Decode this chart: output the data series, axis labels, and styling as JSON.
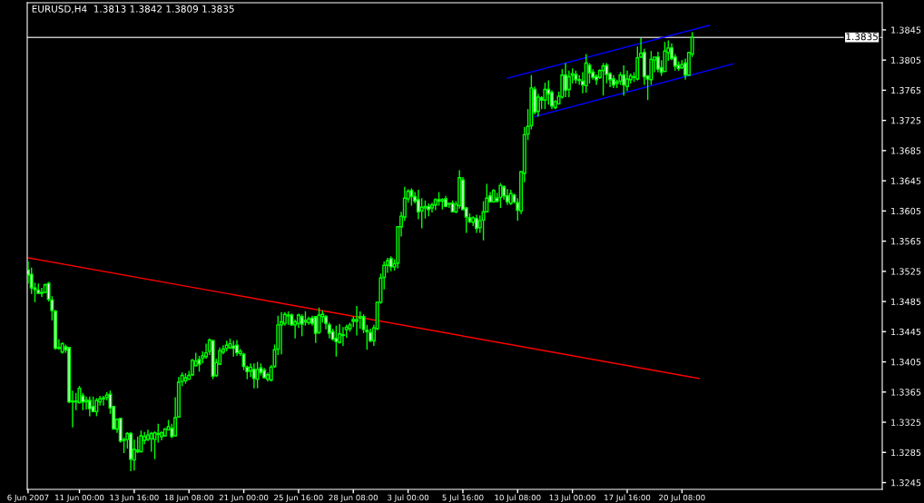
{
  "chart_data": {
    "type": "candlestick",
    "title": "EURUSD,H4  1.3813 1.3842 1.3809 1.3835",
    "categories": [
      "6 Jun 2007",
      null,
      null,
      null,
      null,
      null,
      null,
      null,
      null,
      null,
      null,
      null,
      null,
      null,
      null,
      "11 Jun 00:00",
      null,
      null,
      null,
      null,
      null,
      null,
      null,
      null,
      null,
      null,
      null,
      null,
      null,
      null,
      null,
      "13 Jun 16:00",
      null,
      null,
      null,
      null,
      null,
      null,
      null,
      null,
      null,
      null,
      null,
      null,
      null,
      null,
      null,
      "18 Jun 08:00",
      null,
      null,
      null,
      null,
      null,
      null,
      null,
      null,
      null,
      null,
      null,
      null,
      null,
      null,
      null,
      "21 Jun 00:00",
      null,
      null,
      null,
      null,
      null,
      null,
      null,
      null,
      null,
      null,
      null,
      null,
      null,
      null,
      null,
      "25 Jun 16:00",
      null,
      null,
      null,
      null,
      null,
      null,
      null,
      null,
      null,
      null,
      null,
      null,
      null,
      null,
      null,
      "28 Jun 08:00",
      null,
      null,
      null,
      null,
      null,
      null,
      null,
      null,
      null,
      null,
      null,
      null,
      null,
      null,
      null,
      "3 Jul 00:00",
      null,
      null,
      null,
      null,
      null,
      null,
      null,
      null,
      null,
      null,
      null,
      null,
      null,
      null,
      null,
      "5 Jul 16:00",
      null,
      null,
      null,
      null,
      null,
      null,
      null,
      null,
      null,
      null,
      null,
      null,
      null,
      null,
      null,
      "10 Jul 08:00",
      null,
      null,
      null,
      null,
      null,
      null,
      null,
      null,
      null,
      null,
      null,
      null,
      null,
      null,
      null,
      "13 Jul 00:00",
      null,
      null,
      null,
      null,
      null,
      null,
      null,
      null,
      null,
      null,
      null,
      null,
      null,
      null,
      null,
      "17 Jul 16:00",
      null,
      null,
      null,
      null,
      null,
      null,
      null,
      null,
      null,
      null,
      null,
      null,
      null,
      null,
      null,
      "20 Jul 08:00",
      null,
      null,
      null,
      null,
      null,
      null,
      null,
      null,
      null,
      null,
      null,
      null,
      null,
      null,
      null,
      null,
      null,
      null,
      null,
      null,
      null,
      null,
      null,
      null,
      null,
      null,
      null,
      null,
      null,
      null,
      null,
      null,
      null,
      null,
      null,
      null,
      null,
      null,
      null,
      null,
      null,
      null,
      null,
      null,
      null,
      null,
      null,
      null,
      null,
      null,
      null,
      null,
      null,
      null,
      null,
      null,
      null,
      null
    ],
    "ohlc": [
      [
        1.3527,
        1.3538,
        1.3509,
        1.352
      ],
      [
        1.3521,
        1.353,
        1.3495,
        1.3503
      ],
      [
        1.3503,
        1.351,
        1.3484,
        1.3501
      ],
      [
        1.35,
        1.3509,
        1.3495,
        1.3496
      ],
      [
        1.3496,
        1.3503,
        1.3491,
        1.3497
      ],
      [
        1.3497,
        1.3509,
        1.3496,
        1.3507
      ],
      [
        1.3509,
        1.3511,
        1.3485,
        1.3488
      ],
      [
        1.3487,
        1.3492,
        1.346,
        1.3473
      ],
      [
        1.3472,
        1.3474,
        1.3421,
        1.3423
      ],
      [
        1.3423,
        1.3435,
        1.3421,
        1.3424
      ],
      [
        1.3418,
        1.3431,
        1.3416,
        1.3429
      ],
      [
        1.3425,
        1.3428,
        1.3417,
        1.3421
      ],
      [
        1.3424,
        1.3425,
        1.335,
        1.3352
      ],
      [
        1.3352,
        1.3367,
        1.3318,
        1.3353
      ],
      [
        1.3353,
        1.3364,
        1.3341,
        1.3352
      ],
      [
        1.3351,
        1.3373,
        1.335,
        1.337
      ],
      [
        1.336,
        1.3364,
        1.3341,
        1.3352
      ],
      [
        1.3352,
        1.3359,
        1.3342,
        1.3354
      ],
      [
        1.3354,
        1.3359,
        1.3333,
        1.3343
      ],
      [
        1.3346,
        1.3359,
        1.3339,
        1.3339
      ],
      [
        1.3339,
        1.3357,
        1.3333,
        1.3354
      ],
      [
        1.3352,
        1.336,
        1.3347,
        1.3356
      ],
      [
        1.3356,
        1.336,
        1.3347,
        1.3357
      ],
      [
        1.3358,
        1.3365,
        1.3354,
        1.3361
      ],
      [
        1.3362,
        1.3367,
        1.3336,
        1.3344
      ],
      [
        1.3346,
        1.3346,
        1.3316,
        1.3316
      ],
      [
        1.3316,
        1.3329,
        1.3311,
        1.3329
      ],
      [
        1.333,
        1.3331,
        1.3298,
        1.33
      ],
      [
        1.3301,
        1.3305,
        1.3284,
        1.3302
      ],
      [
        1.3302,
        1.3312,
        1.329,
        1.331
      ],
      [
        1.331,
        1.3312,
        1.326,
        1.3276
      ],
      [
        1.3275,
        1.3302,
        1.3261,
        1.3289
      ],
      [
        1.3286,
        1.3306,
        1.3284,
        1.3288
      ],
      [
        1.3286,
        1.3314,
        1.3285,
        1.3307
      ],
      [
        1.3301,
        1.3312,
        1.3296,
        1.3306
      ],
      [
        1.3302,
        1.3315,
        1.33,
        1.3308
      ],
      [
        1.3303,
        1.3312,
        1.3286,
        1.331
      ],
      [
        1.3302,
        1.3313,
        1.3276,
        1.3311
      ],
      [
        1.331,
        1.3323,
        1.3298,
        1.3309
      ],
      [
        1.3306,
        1.3313,
        1.3301,
        1.3311
      ],
      [
        1.3307,
        1.3317,
        1.3306,
        1.3316
      ],
      [
        1.3315,
        1.3328,
        1.3315,
        1.3319
      ],
      [
        1.3317,
        1.3323,
        1.3304,
        1.3306
      ],
      [
        1.3307,
        1.3358,
        1.3306,
        1.3331
      ],
      [
        1.3332,
        1.3385,
        1.3332,
        1.3378
      ],
      [
        1.3379,
        1.3391,
        1.3373,
        1.3387
      ],
      [
        1.338,
        1.339,
        1.3376,
        1.3384
      ],
      [
        1.3382,
        1.3393,
        1.3381,
        1.3387
      ],
      [
        1.3388,
        1.3409,
        1.3386,
        1.3407
      ],
      [
        1.34,
        1.3417,
        1.3399,
        1.3406
      ],
      [
        1.3408,
        1.3413,
        1.3392,
        1.3402
      ],
      [
        1.341,
        1.3419,
        1.3403,
        1.3413
      ],
      [
        1.3412,
        1.3429,
        1.3409,
        1.3417
      ],
      [
        1.3419,
        1.3436,
        1.3414,
        1.3434
      ],
      [
        1.3433,
        1.3434,
        1.3382,
        1.3386
      ],
      [
        1.3387,
        1.3409,
        1.3385,
        1.3404
      ],
      [
        1.3402,
        1.3424,
        1.3401,
        1.342
      ],
      [
        1.3418,
        1.3427,
        1.3415,
        1.3422
      ],
      [
        1.3423,
        1.3433,
        1.3419,
        1.3427
      ],
      [
        1.3424,
        1.3436,
        1.3422,
        1.3429
      ],
      [
        1.3426,
        1.3433,
        1.3412,
        1.3423
      ],
      [
        1.3427,
        1.3434,
        1.3413,
        1.3417
      ],
      [
        1.3416,
        1.3422,
        1.3413,
        1.3419
      ],
      [
        1.3415,
        1.3417,
        1.3394,
        1.3399
      ],
      [
        1.3398,
        1.34,
        1.3382,
        1.3392
      ],
      [
        1.3393,
        1.3403,
        1.3385,
        1.3398
      ],
      [
        1.3395,
        1.3403,
        1.337,
        1.3383
      ],
      [
        1.3382,
        1.3405,
        1.337,
        1.3395
      ],
      [
        1.3397,
        1.3403,
        1.3387,
        1.3391
      ],
      [
        1.3394,
        1.3397,
        1.3383,
        1.3384
      ],
      [
        1.3382,
        1.3391,
        1.3379,
        1.3388
      ],
      [
        1.3381,
        1.3401,
        1.3379,
        1.3398
      ],
      [
        1.3399,
        1.3428,
        1.3397,
        1.3421
      ],
      [
        1.3422,
        1.3466,
        1.3414,
        1.3454
      ],
      [
        1.3454,
        1.3471,
        1.3415,
        1.3458
      ],
      [
        1.3456,
        1.3471,
        1.3453,
        1.3468
      ],
      [
        1.3467,
        1.3472,
        1.3454,
        1.3466
      ],
      [
        1.3467,
        1.3469,
        1.3453,
        1.3454
      ],
      [
        1.3454,
        1.3461,
        1.3436,
        1.3458
      ],
      [
        1.3456,
        1.3469,
        1.345,
        1.3467
      ],
      [
        1.3465,
        1.3468,
        1.3439,
        1.3455
      ],
      [
        1.3458,
        1.3472,
        1.3453,
        1.346
      ],
      [
        1.3457,
        1.3465,
        1.3454,
        1.3462
      ],
      [
        1.3463,
        1.3466,
        1.3453,
        1.3456
      ],
      [
        1.3465,
        1.3465,
        1.343,
        1.3443
      ],
      [
        1.3444,
        1.3477,
        1.3442,
        1.3467
      ],
      [
        1.3465,
        1.3473,
        1.3457,
        1.3468
      ],
      [
        1.3465,
        1.3467,
        1.3448,
        1.3456
      ],
      [
        1.3454,
        1.3457,
        1.3436,
        1.3443
      ],
      [
        1.3445,
        1.3449,
        1.3433,
        1.3435
      ],
      [
        1.3436,
        1.3453,
        1.3412,
        1.3432
      ],
      [
        1.3431,
        1.3455,
        1.3429,
        1.3442
      ],
      [
        1.3441,
        1.3451,
        1.3426,
        1.344
      ],
      [
        1.3448,
        1.3454,
        1.3437,
        1.3451
      ],
      [
        1.3449,
        1.3457,
        1.3445,
        1.3454
      ],
      [
        1.3459,
        1.3465,
        1.3451,
        1.3461
      ],
      [
        1.3459,
        1.3479,
        1.344,
        1.3461
      ],
      [
        1.3463,
        1.3472,
        1.3449,
        1.3465
      ],
      [
        1.3465,
        1.3468,
        1.3443,
        1.3448
      ],
      [
        1.3447,
        1.3454,
        1.3421,
        1.3445
      ],
      [
        1.3444,
        1.3449,
        1.3431,
        1.3433
      ],
      [
        1.3433,
        1.3454,
        1.3426,
        1.345
      ],
      [
        1.3449,
        1.3485,
        1.3447,
        1.3484
      ],
      [
        1.3484,
        1.3522,
        1.3482,
        1.3516
      ],
      [
        1.3517,
        1.3538,
        1.3501,
        1.3533
      ],
      [
        1.3533,
        1.3543,
        1.3523,
        1.3539
      ],
      [
        1.3542,
        1.3545,
        1.3525,
        1.3531
      ],
      [
        1.3531,
        1.3541,
        1.3526,
        1.3535
      ],
      [
        1.3536,
        1.3585,
        1.3529,
        1.3584
      ],
      [
        1.3584,
        1.3604,
        1.3571,
        1.3598
      ],
      [
        1.3597,
        1.3637,
        1.3592,
        1.3622
      ],
      [
        1.3621,
        1.3634,
        1.3616,
        1.3631
      ],
      [
        1.3632,
        1.3635,
        1.3612,
        1.3624
      ],
      [
        1.3624,
        1.363,
        1.3615,
        1.3618
      ],
      [
        1.362,
        1.3633,
        1.3594,
        1.3604
      ],
      [
        1.3605,
        1.3622,
        1.3582,
        1.361
      ],
      [
        1.3609,
        1.3619,
        1.3595,
        1.3611
      ],
      [
        1.3611,
        1.3615,
        1.3598,
        1.3607
      ],
      [
        1.3609,
        1.3616,
        1.3603,
        1.3613
      ],
      [
        1.3613,
        1.3622,
        1.3606,
        1.362
      ],
      [
        1.362,
        1.363,
        1.3612,
        1.3618
      ],
      [
        1.3618,
        1.3622,
        1.3607,
        1.362
      ],
      [
        1.3621,
        1.3625,
        1.361,
        1.3611
      ],
      [
        1.3614,
        1.3616,
        1.3609,
        1.3615
      ],
      [
        1.3615,
        1.3619,
        1.3603,
        1.3604
      ],
      [
        1.3604,
        1.3618,
        1.3602,
        1.3614
      ],
      [
        1.3612,
        1.3659,
        1.3608,
        1.3649
      ],
      [
        1.3646,
        1.365,
        1.3606,
        1.3607
      ],
      [
        1.3609,
        1.361,
        1.3576,
        1.3597
      ],
      [
        1.3596,
        1.3602,
        1.3589,
        1.3591
      ],
      [
        1.359,
        1.3598,
        1.3585,
        1.3596
      ],
      [
        1.3595,
        1.36,
        1.3576,
        1.3582
      ],
      [
        1.3583,
        1.3599,
        1.3576,
        1.3592
      ],
      [
        1.3593,
        1.3618,
        1.3566,
        1.3604
      ],
      [
        1.3604,
        1.3641,
        1.3603,
        1.3622
      ],
      [
        1.3625,
        1.363,
        1.3616,
        1.3617
      ],
      [
        1.3617,
        1.3634,
        1.3616,
        1.3632
      ],
      [
        1.3622,
        1.3629,
        1.3616,
        1.3618
      ],
      [
        1.3623,
        1.3642,
        1.3609,
        1.3639
      ],
      [
        1.3637,
        1.3639,
        1.362,
        1.3625
      ],
      [
        1.3625,
        1.3634,
        1.3613,
        1.3617
      ],
      [
        1.3615,
        1.3633,
        1.3613,
        1.3628
      ],
      [
        1.3626,
        1.3628,
        1.3615,
        1.3617
      ],
      [
        1.3616,
        1.3622,
        1.3592,
        1.3606
      ],
      [
        1.3605,
        1.3658,
        1.3601,
        1.3657
      ],
      [
        1.3655,
        1.3716,
        1.3643,
        1.3706
      ],
      [
        1.3707,
        1.374,
        1.3699,
        1.3717
      ],
      [
        1.3718,
        1.3785,
        1.3713,
        1.3768
      ],
      [
        1.3766,
        1.377,
        1.3733,
        1.3736
      ],
      [
        1.3737,
        1.376,
        1.373,
        1.3756
      ],
      [
        1.3755,
        1.3757,
        1.374,
        1.3752
      ],
      [
        1.3752,
        1.3775,
        1.374,
        1.3766
      ],
      [
        1.3766,
        1.3778,
        1.3746,
        1.376
      ],
      [
        1.3762,
        1.3765,
        1.374,
        1.3744
      ],
      [
        1.3742,
        1.3752,
        1.374,
        1.375
      ],
      [
        1.3747,
        1.3763,
        1.3746,
        1.3757
      ],
      [
        1.3756,
        1.3793,
        1.3754,
        1.3785
      ],
      [
        1.3785,
        1.3801,
        1.3756,
        1.3765
      ],
      [
        1.3766,
        1.3791,
        1.3756,
        1.3783
      ],
      [
        1.3785,
        1.3794,
        1.3774,
        1.3787
      ],
      [
        1.3786,
        1.3791,
        1.3774,
        1.3779
      ],
      [
        1.3779,
        1.3785,
        1.3772,
        1.3778
      ],
      [
        1.3777,
        1.3789,
        1.3761,
        1.3772
      ],
      [
        1.3771,
        1.3813,
        1.3762,
        1.3801
      ],
      [
        1.3798,
        1.3801,
        1.3774,
        1.3788
      ],
      [
        1.3789,
        1.3793,
        1.3779,
        1.3782
      ],
      [
        1.3783,
        1.3786,
        1.3772,
        1.3779
      ],
      [
        1.3782,
        1.3793,
        1.378,
        1.3791
      ],
      [
        1.3791,
        1.3801,
        1.3758,
        1.3797
      ],
      [
        1.3798,
        1.3801,
        1.3774,
        1.3786
      ],
      [
        1.3787,
        1.3789,
        1.3769,
        1.3779
      ],
      [
        1.378,
        1.3785,
        1.3768,
        1.3772
      ],
      [
        1.3774,
        1.3779,
        1.3768,
        1.3776
      ],
      [
        1.3777,
        1.3789,
        1.3772,
        1.3785
      ],
      [
        1.3785,
        1.3798,
        1.3758,
        1.3772
      ],
      [
        1.377,
        1.3791,
        1.3764,
        1.378
      ],
      [
        1.3779,
        1.3787,
        1.3774,
        1.3784
      ],
      [
        1.3783,
        1.3789,
        1.3776,
        1.3782
      ],
      [
        1.378,
        1.3823,
        1.3778,
        1.3808
      ],
      [
        1.3809,
        1.3834,
        1.3808,
        1.3814
      ],
      [
        1.3815,
        1.382,
        1.3772,
        1.3783
      ],
      [
        1.3784,
        1.3785,
        1.3752,
        1.378
      ],
      [
        1.3779,
        1.3817,
        1.3772,
        1.3806
      ],
      [
        1.3805,
        1.3809,
        1.3789,
        1.3809
      ],
      [
        1.3809,
        1.3816,
        1.3789,
        1.3793
      ],
      [
        1.3795,
        1.3805,
        1.3784,
        1.3789
      ],
      [
        1.379,
        1.3829,
        1.3789,
        1.3817
      ],
      [
        1.3815,
        1.3831,
        1.3804,
        1.3821
      ],
      [
        1.3821,
        1.3827,
        1.3805,
        1.3807
      ],
      [
        1.3809,
        1.3813,
        1.3791,
        1.3797
      ],
      [
        1.3798,
        1.3803,
        1.3791,
        1.3794
      ],
      [
        1.3795,
        1.3805,
        1.3793,
        1.3799
      ],
      [
        1.3801,
        1.3807,
        1.3779,
        1.3785
      ],
      [
        1.3785,
        1.3816,
        1.3784,
        1.3815
      ],
      [
        1.3813,
        1.3842,
        1.3809,
        1.3835
      ],
      null,
      null,
      null,
      null,
      null,
      null,
      null,
      null,
      null,
      null,
      null,
      null,
      null,
      null,
      null,
      null,
      null,
      null,
      null,
      null,
      null,
      null,
      null,
      null,
      null,
      null,
      null,
      null,
      null,
      null,
      null,
      null,
      null,
      null,
      null,
      null,
      null,
      null,
      null,
      null,
      null,
      null,
      null,
      null,
      null,
      null,
      null,
      null,
      null,
      null,
      null,
      null,
      null,
      null,
      null
    ],
    "series": [
      {
        "type": "line",
        "color": "#ff0000",
        "values": [
          1.3543,
          null,
          null,
          null,
          null,
          null,
          null,
          null,
          null,
          null,
          null,
          null,
          null,
          null,
          null,
          null,
          null,
          null,
          null,
          null,
          null,
          null,
          null,
          null,
          null,
          null,
          null,
          null,
          null,
          null,
          null,
          null,
          null,
          null,
          null,
          null,
          null,
          null,
          null,
          null,
          null,
          null,
          null,
          null,
          null,
          null,
          null,
          null,
          null,
          null,
          null,
          null,
          null,
          null,
          null,
          null,
          null,
          null,
          null,
          null,
          null,
          null,
          null,
          null,
          null,
          null,
          null,
          null,
          null,
          null,
          null,
          null,
          null,
          null,
          null,
          null,
          null,
          null,
          null,
          null,
          null,
          null,
          null,
          null,
          null,
          null,
          null,
          null,
          null,
          null,
          null,
          null,
          null,
          null,
          null,
          null,
          null,
          null,
          null,
          null,
          null,
          null,
          null,
          null,
          null,
          null,
          null,
          null,
          null,
          null,
          null,
          null,
          null,
          null,
          null,
          null,
          null,
          null,
          null,
          null,
          null,
          null,
          null,
          null,
          null,
          null,
          null,
          null,
          null,
          null,
          null,
          null,
          null,
          null,
          null,
          null,
          null,
          null,
          null,
          null,
          null,
          null,
          null,
          null,
          null,
          null,
          null,
          null,
          null,
          null,
          null,
          null,
          null,
          null,
          null,
          null,
          null,
          null,
          null,
          null,
          null,
          null,
          null,
          null,
          null,
          null,
          null,
          null,
          null,
          null,
          null,
          null,
          null,
          null,
          null,
          null,
          null,
          null,
          null,
          null,
          null,
          null,
          null,
          null,
          null,
          null,
          null,
          null,
          null,
          null,
          null,
          null,
          null,
          null,
          null,
          null,
          1.3383,
          null,
          null,
          null,
          null,
          null,
          null,
          null,
          null,
          null,
          null,
          null,
          null,
          null,
          null,
          null,
          null,
          null,
          null,
          null,
          null,
          null,
          null,
          null,
          null,
          null,
          null,
          null,
          null,
          null,
          null,
          null,
          null,
          null,
          null,
          null,
          null,
          null,
          null,
          null,
          null,
          null,
          null,
          null,
          null,
          null,
          null,
          null,
          null,
          null,
          null,
          null,
          null,
          null
        ]
      },
      {
        "type": "line",
        "color": "#0000ff",
        "values": [
          null,
          null,
          null,
          null,
          null,
          null,
          null,
          null,
          null,
          null,
          null,
          null,
          null,
          null,
          null,
          null,
          null,
          null,
          null,
          null,
          null,
          null,
          null,
          null,
          null,
          null,
          null,
          null,
          null,
          null,
          null,
          null,
          null,
          null,
          null,
          null,
          null,
          null,
          null,
          null,
          null,
          null,
          null,
          null,
          null,
          null,
          null,
          null,
          null,
          null,
          null,
          null,
          null,
          null,
          null,
          null,
          null,
          null,
          null,
          null,
          null,
          null,
          null,
          null,
          null,
          null,
          null,
          null,
          null,
          null,
          null,
          null,
          null,
          null,
          null,
          null,
          null,
          null,
          null,
          null,
          null,
          null,
          null,
          null,
          null,
          null,
          null,
          null,
          null,
          null,
          null,
          null,
          null,
          null,
          null,
          null,
          null,
          null,
          null,
          null,
          null,
          null,
          null,
          null,
          null,
          null,
          null,
          null,
          null,
          null,
          null,
          null,
          null,
          null,
          null,
          null,
          null,
          null,
          null,
          null,
          null,
          null,
          null,
          null,
          null,
          null,
          null,
          null,
          null,
          null,
          null,
          null,
          null,
          null,
          null,
          null,
          null,
          null,
          null,
          null,
          1.3781,
          null,
          null,
          null,
          null,
          null,
          null,
          null,
          null,
          null,
          null,
          null,
          null,
          null,
          null,
          null,
          null,
          null,
          null,
          null,
          null,
          null,
          null,
          null,
          null,
          null,
          null,
          null,
          null,
          null,
          null,
          null,
          null,
          null,
          null,
          null,
          null,
          null,
          null,
          null,
          null,
          null,
          null,
          null,
          null,
          null,
          null,
          null,
          null,
          null,
          null,
          null,
          null,
          null,
          null,
          null,
          null,
          null,
          null,
          1.3851,
          null,
          null,
          null,
          null,
          null,
          null,
          null,
          null,
          null,
          null,
          null,
          null,
          null,
          null,
          null,
          null,
          null,
          null,
          null,
          null,
          null,
          null,
          null,
          null,
          null,
          null,
          null,
          null,
          null,
          null,
          null,
          null,
          null,
          null,
          null,
          null,
          null,
          null,
          null,
          null,
          null,
          null,
          null,
          null,
          null,
          null,
          null,
          null,
          null,
          null
        ]
      },
      {
        "type": "line",
        "color": "#0000ff",
        "values": [
          null,
          null,
          null,
          null,
          null,
          null,
          null,
          null,
          null,
          null,
          null,
          null,
          null,
          null,
          null,
          null,
          null,
          null,
          null,
          null,
          null,
          null,
          null,
          null,
          null,
          null,
          null,
          null,
          null,
          null,
          null,
          null,
          null,
          null,
          null,
          null,
          null,
          null,
          null,
          null,
          null,
          null,
          null,
          null,
          null,
          null,
          null,
          null,
          null,
          null,
          null,
          null,
          null,
          null,
          null,
          null,
          null,
          null,
          null,
          null,
          null,
          null,
          null,
          null,
          null,
          null,
          null,
          null,
          null,
          null,
          null,
          null,
          null,
          null,
          null,
          null,
          null,
          null,
          null,
          null,
          null,
          null,
          null,
          null,
          null,
          null,
          null,
          null,
          null,
          null,
          null,
          null,
          null,
          null,
          null,
          null,
          null,
          null,
          null,
          null,
          null,
          null,
          null,
          null,
          null,
          null,
          null,
          null,
          null,
          null,
          null,
          null,
          null,
          null,
          null,
          null,
          null,
          null,
          null,
          null,
          null,
          null,
          null,
          null,
          null,
          null,
          null,
          null,
          null,
          null,
          null,
          null,
          null,
          null,
          null,
          null,
          null,
          null,
          null,
          null,
          null,
          null,
          null,
          null,
          null,
          null,
          null,
          null,
          1.373,
          null,
          null,
          null,
          null,
          null,
          null,
          null,
          null,
          null,
          null,
          null,
          null,
          null,
          null,
          null,
          null,
          null,
          null,
          null,
          null,
          null,
          null,
          null,
          null,
          null,
          null,
          null,
          null,
          null,
          null,
          null,
          null,
          null,
          null,
          null,
          null,
          null,
          null,
          null,
          null,
          null,
          null,
          null,
          null,
          null,
          null,
          null,
          null,
          null,
          null,
          null,
          null,
          null,
          null,
          null,
          null,
          null,
          1.38,
          null,
          null,
          null,
          null,
          null,
          null,
          null,
          null,
          null,
          null,
          null,
          null,
          null,
          null,
          null,
          null,
          null,
          null,
          null,
          null,
          null,
          null,
          null,
          null,
          null,
          null,
          null,
          null,
          null,
          null,
          null,
          null,
          null,
          null,
          null,
          null,
          null,
          null,
          null,
          null,
          null,
          null,
          null
        ]
      }
    ],
    "ref_lines": [
      {
        "axis": "y",
        "value": 1.3835,
        "label": "1.3835",
        "color": "#c0c0c0"
      }
    ],
    "ylim": [
      1.3236,
      1.3881
    ],
    "yticks": [
      1.3845,
      1.3805,
      1.3765,
      1.3725,
      1.3685,
      1.3645,
      1.3605,
      1.3565,
      1.3525,
      1.3485,
      1.3445,
      1.3405,
      1.3365,
      1.3325,
      1.3285,
      1.3245
    ],
    "grid": false,
    "legend": false
  }
}
